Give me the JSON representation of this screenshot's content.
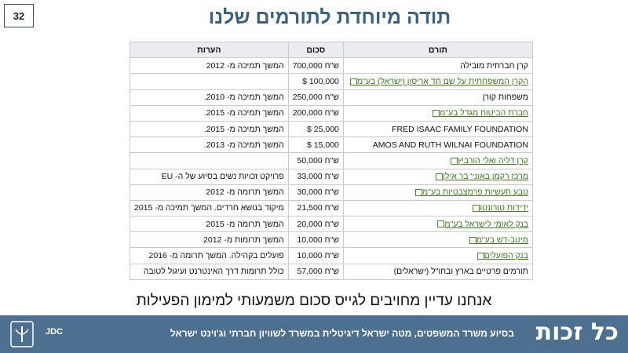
{
  "slide_number": "32",
  "title": "תודה מיוחדת לתורמים שלנו",
  "table": {
    "headers": [
      "תורם",
      "סכום",
      "הערות"
    ],
    "rows": [
      {
        "donor": "קרן חברתית מובילה",
        "amount": "700,000 ש\"ח",
        "note": "המשך תמיכה מ- 2012"
      },
      {
        "donor": "הקרן המשפחתית על שם תד אריסון (ישראל) בע\"מ",
        "link": true,
        "amount": "$ 100,000"
      },
      {
        "donor": "משפחות קורן",
        "amount": "250,000 ש\"ח",
        "note": "המשך תמיכה מ- 2010."
      },
      {
        "donor": "חברת הביטוח מגדל בע\"מ",
        "link": true,
        "amount": "200,000 ש\"ח",
        "note": "המשך תמיכה מ- 2015."
      },
      {
        "donor": "FRED ISAAC FAMILY FOUNDATION",
        "amount": "$ 25,000",
        "note": "המשך תמיכה מ- 2015."
      },
      {
        "donor": "AMOS AND RUTH WILNAI FOUNDATION",
        "amount": "$ 15,000",
        "note": "המשך תמיכה מ- 2013."
      },
      {
        "donor": "קרן דליה ואלי הורביץ",
        "link": true,
        "amount": "50,000 ש\"ח"
      },
      {
        "donor": "מרכז רקמן באוני' בר אילן",
        "link": true,
        "amount": "33,000 ש\"ח",
        "note": "פרויקט זכויות נשים בסיוע של ה- EU"
      },
      {
        "donor": "טבע תעשיות פרמצבטיות בע\"מ",
        "link": true,
        "amount": "30,000 ש\"ח",
        "note": "המשך תרומה מ- 2012"
      },
      {
        "donor": "ידידות טורונטו",
        "link": true,
        "amount": "21,500 ש\"ח",
        "note": "מיקוד בנושא חרדים. המשך תמיכה מ- 2015"
      },
      {
        "donor": "בנק לאומי לישראל בע\"מ",
        "link": true,
        "amount": "20,000 ש\"ח",
        "note": "המשך תרומה מ- 2015"
      },
      {
        "donor": "מיטב-דש בע\"מ",
        "link": true,
        "amount": "10,000 ש\"ח",
        "note": "המשך תרומות מ- 2012"
      },
      {
        "donor": "בנק הפועלים",
        "link": true,
        "amount": "10,000 ש\"ח",
        "note": "פועלים בקהילה. המשך תרומה מ- 2016"
      },
      {
        "donor": "תורמים פרטיים בארץ ובחו\"ל (ישראלים)",
        "amount": "57,000 ש\"ח",
        "note": "כולל תרומות דרך האינטרנט ועיגול לטובה"
      }
    ]
  },
  "subtitle": "אנחנו עדיין מחויבים לגייס סכום משמעותי למימון הפעילות",
  "footer": {
    "text": "בסיוע משרד המשפטים, מטה ישראל דיגיטלית במשרד לשוויון חברתי וג'וינט ישראל",
    "logo": "כל זכות",
    "partner": "JDC"
  }
}
